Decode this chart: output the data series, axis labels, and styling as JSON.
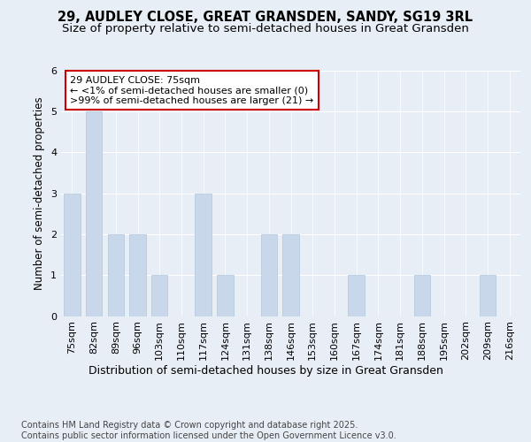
{
  "title": "29, AUDLEY CLOSE, GREAT GRANSDEN, SANDY, SG19 3RL",
  "subtitle": "Size of property relative to semi-detached houses in Great Gransden",
  "xlabel": "Distribution of semi-detached houses by size in Great Gransden",
  "ylabel": "Number of semi-detached properties",
  "categories": [
    "75sqm",
    "82sqm",
    "89sqm",
    "96sqm",
    "103sqm",
    "110sqm",
    "117sqm",
    "124sqm",
    "131sqm",
    "138sqm",
    "146sqm",
    "153sqm",
    "160sqm",
    "167sqm",
    "174sqm",
    "181sqm",
    "188sqm",
    "195sqm",
    "202sqm",
    "209sqm",
    "216sqm"
  ],
  "values": [
    3,
    5,
    2,
    2,
    1,
    0,
    3,
    1,
    0,
    2,
    2,
    0,
    0,
    1,
    0,
    0,
    1,
    0,
    0,
    1,
    0
  ],
  "bar_color": "#c8d8ea",
  "bar_edge_color": "#b0c8dc",
  "bg_color": "#e8eef6",
  "plot_bg_color": "#e8eef6",
  "annotation_text": "29 AUDLEY CLOSE: 75sqm\n← <1% of semi-detached houses are smaller (0)\n>99% of semi-detached houses are larger (21) →",
  "annotation_box_facecolor": "#ffffff",
  "annotation_box_edgecolor": "#cc0000",
  "ylim": [
    0,
    6
  ],
  "yticks": [
    0,
    1,
    2,
    3,
    4,
    5,
    6
  ],
  "footer": "Contains HM Land Registry data © Crown copyright and database right 2025.\nContains public sector information licensed under the Open Government Licence v3.0.",
  "title_fontsize": 10.5,
  "subtitle_fontsize": 9.5,
  "xlabel_fontsize": 9,
  "ylabel_fontsize": 8.5,
  "tick_fontsize": 8,
  "annotation_fontsize": 8,
  "footer_fontsize": 7
}
